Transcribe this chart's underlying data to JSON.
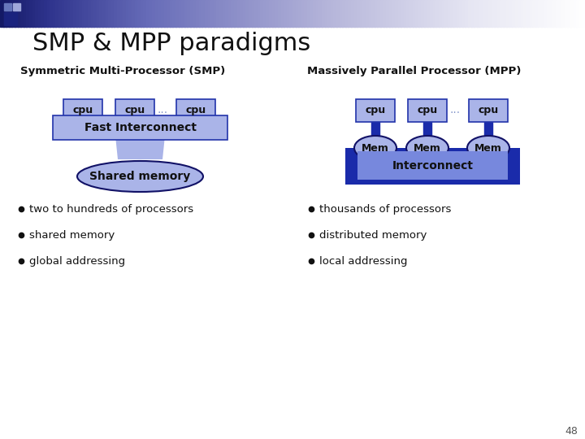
{
  "title": "SMP & MPP paradigms",
  "title_fontsize": 22,
  "bg_color": "#ffffff",
  "smp_label": "Symmetric Multi-Processor (SMP)",
  "mpp_label": "Massively Parallel Processor (MPP)",
  "cpu_color": "#aab4e8",
  "cpu_border": "#2233aa",
  "fast_interconnect_color": "#aab4e8",
  "fast_interconnect_border": "#2233aa",
  "shared_memory_color": "#aab4e8",
  "shared_memory_border": "#111166",
  "interconnect_outer_color": "#1a2baa",
  "interconnect_inner_color": "#7788dd",
  "interconnect_text_color": "#111111",
  "mem_color": "#aab4e8",
  "mem_border": "#111166",
  "connector_color": "#1a2baa",
  "bullet_items_smp": [
    "two to hundreds of processors",
    "shared memory",
    "global addressing"
  ],
  "bullet_items_mpp": [
    "thousands of processors",
    "distributed memory",
    "local addressing"
  ],
  "page_number": "48",
  "dots_color": "#8899cc"
}
